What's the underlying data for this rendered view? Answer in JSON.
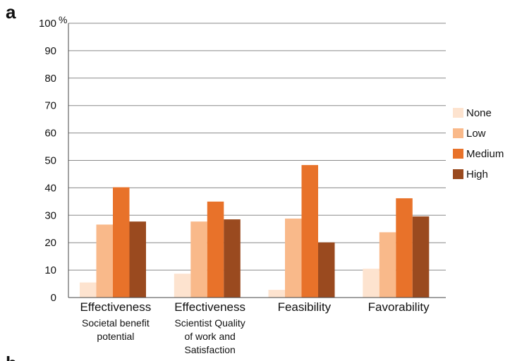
{
  "panel_letters": {
    "top": "a",
    "bottom": "b"
  },
  "chart_data": {
    "type": "bar",
    "unit_label": "%",
    "ylim": [
      0,
      100
    ],
    "y_ticks": [
      0,
      10,
      20,
      30,
      40,
      50,
      60,
      70,
      80,
      90,
      100
    ],
    "grid": true,
    "legend_position": "right",
    "categories": [
      {
        "main": "Effectiveness",
        "sub": [
          "Societal benefit",
          "potential"
        ]
      },
      {
        "main": "Effectiveness",
        "sub": [
          "Scientist Quality",
          "of work and",
          "Satisfaction"
        ]
      },
      {
        "main": "Feasibility",
        "sub": []
      },
      {
        "main": "Favorability",
        "sub": []
      }
    ],
    "series": [
      {
        "name": "None",
        "color": "#fde3cf",
        "values": [
          5.5,
          8.7,
          2.8,
          10.5
        ]
      },
      {
        "name": "Low",
        "color": "#f9b98a",
        "values": [
          26.6,
          27.7,
          28.8,
          23.8
        ]
      },
      {
        "name": "Medium",
        "color": "#e8722a",
        "values": [
          40.2,
          35.0,
          48.3,
          36.2
        ]
      },
      {
        "name": "High",
        "color": "#9a4a1f",
        "values": [
          27.7,
          28.5,
          20.1,
          29.6
        ]
      }
    ]
  }
}
